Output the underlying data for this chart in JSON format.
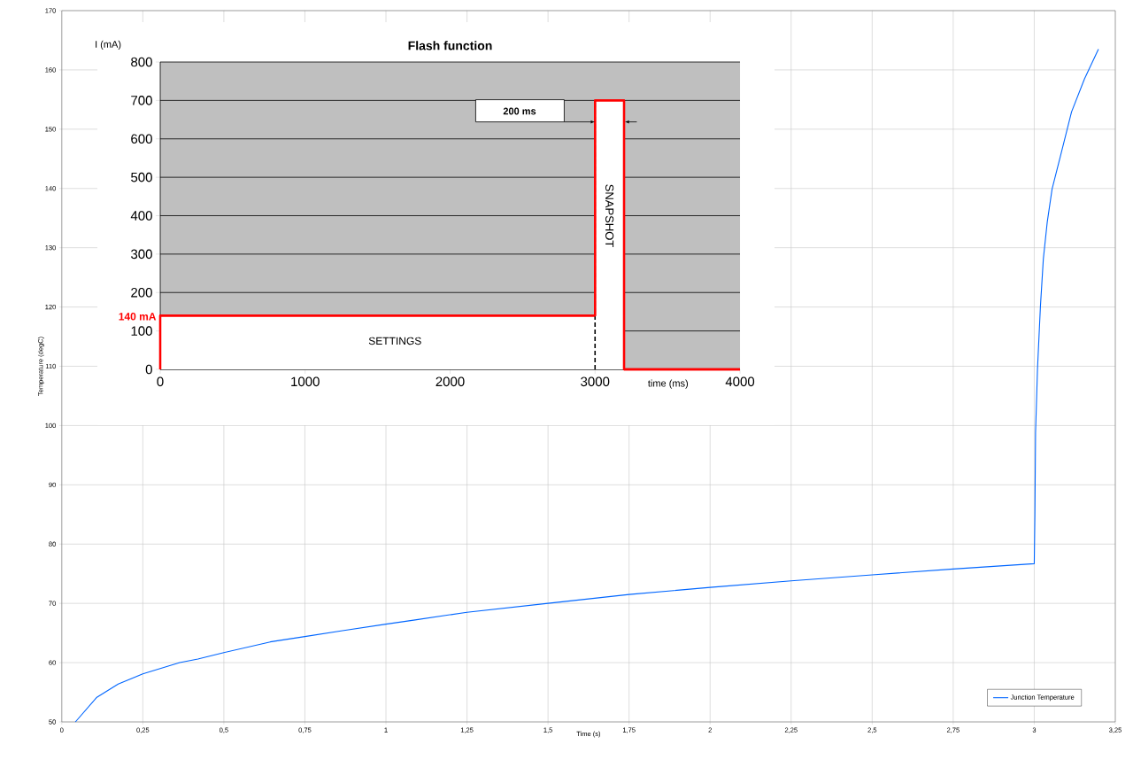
{
  "chart_data": [
    {
      "type": "line",
      "xlabel": "Time (s)",
      "ylabel": "Temperature (degC)",
      "xlim": [
        0,
        3.25
      ],
      "ylim": [
        50,
        170
      ],
      "xticks": [
        0,
        {
          "value": 0.25,
          "label": "0,25"
        },
        {
          "value": 0.5,
          "label": "0,5"
        },
        {
          "value": 0.75,
          "label": "0,75"
        },
        1,
        {
          "value": 1.25,
          "label": "1,25"
        },
        {
          "value": 1.5,
          "label": "1,5"
        },
        {
          "value": 1.75,
          "label": "1,75"
        },
        2,
        {
          "value": 2.25,
          "label": "2,25"
        },
        {
          "value": 2.5,
          "label": "2,5"
        },
        {
          "value": 2.75,
          "label": "2,75"
        },
        3,
        {
          "value": 3.25,
          "label": "3,25"
        }
      ],
      "yticks": [
        50,
        60,
        70,
        80,
        90,
        100,
        110,
        120,
        130,
        140,
        150,
        160,
        170
      ],
      "grid": true,
      "legend": "bottom right",
      "series": [
        {
          "name": "Junction Temperature",
          "color": "#0066ff",
          "x": [
            0.042,
            0.107,
            0.174,
            0.25,
            0.364,
            0.42,
            0.5,
            0.643,
            0.75,
            0.866,
            1.0,
            1.09,
            1.25,
            1.5,
            1.75,
            2.0,
            2.25,
            2.5,
            2.75,
            3.0,
            3.002,
            3.004,
            3.01,
            3.019,
            3.028,
            3.04,
            3.055,
            3.081,
            3.115,
            3.155,
            3.198
          ],
          "values": [
            50,
            54.1,
            56.4,
            58.1,
            60.0,
            60.6,
            61.7,
            63.5,
            64.4,
            65.4,
            66.5,
            67.2,
            68.5,
            70.0,
            71.5,
            72.7,
            73.8,
            74.8,
            75.8,
            76.7,
            85.0,
            98.8,
            109.6,
            120.1,
            128.1,
            134.3,
            139.9,
            145.5,
            152.9,
            158.5,
            163.5
          ]
        }
      ]
    },
    {
      "type": "area",
      "title": "Flash function",
      "xlabel": "time (ms)",
      "ylabel": "I (mA)",
      "xlim": [
        0,
        4000
      ],
      "ylim": [
        0,
        800
      ],
      "xticks": [
        0,
        1000,
        2000,
        3000,
        4000
      ],
      "yticks": [
        0,
        100,
        200,
        300,
        400,
        500,
        600,
        700,
        800
      ],
      "grid": "y",
      "series": [
        {
          "color": "#ff0000",
          "x": [
            0,
            0,
            3000,
            3000,
            3200,
            3200,
            4000
          ],
          "values": [
            0,
            140,
            140,
            700,
            700,
            0,
            0
          ]
        }
      ],
      "ref_lines": [
        {
          "axis": "x",
          "value": 3000,
          "color": "#000000",
          "line_style": "dashed"
        }
      ],
      "annotations": [
        {
          "text": "140 mA",
          "x": 0,
          "y": 140
        },
        "SETTINGS",
        "SNAPSHOT",
        "200 ms"
      ]
    }
  ]
}
